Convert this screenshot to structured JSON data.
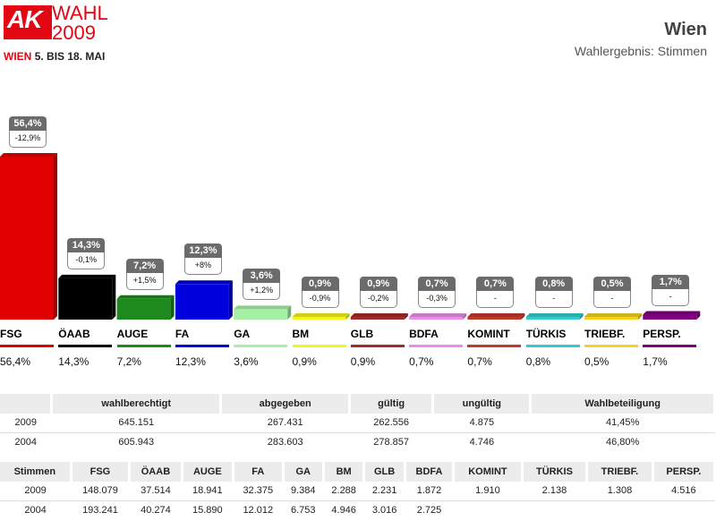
{
  "header": {
    "logo_mark": "AK",
    "logo_word": "WAHL",
    "logo_year": "2009",
    "logo_city": "WIEN",
    "logo_dates": "5. BIS 18. MAI",
    "title": "Wien",
    "subtitle": "Wahlergebnis: Stimmen"
  },
  "chart_data": {
    "type": "bar",
    "categories": [
      "FSG",
      "ÖAAB",
      "AUGE",
      "FA",
      "GA",
      "BM",
      "GLB",
      "BDFA",
      "KOMINT",
      "TÜRKIS",
      "TRIEBF.",
      "PERSP."
    ],
    "values": [
      56.4,
      14.3,
      7.2,
      12.3,
      3.6,
      0.9,
      0.9,
      0.7,
      0.7,
      0.8,
      0.5,
      1.7
    ],
    "value_labels": [
      "56,4%",
      "14,3%",
      "7,2%",
      "12,3%",
      "3,6%",
      "0,9%",
      "0,9%",
      "0,7%",
      "0,7%",
      "0,8%",
      "0,5%",
      "1,7%"
    ],
    "changes": [
      "-12,9%",
      "-0,1%",
      "+1,5%",
      "+8%",
      "+1,2%",
      "-0,9%",
      "-0,2%",
      "-0,3%",
      "-",
      "-",
      "-",
      "-"
    ],
    "colors": [
      "#e00000",
      "#000000",
      "#1e8a1e",
      "#0000dd",
      "#a6f0a6",
      "#f5f51e",
      "#a52a2a",
      "#e88ee8",
      "#c0392b",
      "#33cccc",
      "#f5d21e",
      "#800080"
    ],
    "ylim": [
      0,
      56.4
    ]
  },
  "table_turnout": {
    "headers": [
      "",
      "wahlberechtigt",
      "abgegeben",
      "gültig",
      "ungültig",
      "Wahlbeteiligung"
    ],
    "rows": [
      [
        "2009",
        "645.151",
        "267.431",
        "262.556",
        "4.875",
        "41,45%"
      ],
      [
        "2004",
        "605.943",
        "283.603",
        "278.857",
        "4.746",
        "46,80%"
      ]
    ]
  },
  "table_votes": {
    "headers": [
      "Stimmen",
      "FSG",
      "ÖAAB",
      "AUGE",
      "FA",
      "GA",
      "BM",
      "GLB",
      "BDFA",
      "KOMINT",
      "TÜRKIS",
      "TRIEBF.",
      "PERSP."
    ],
    "rows": [
      [
        "2009",
        "148.079",
        "37.514",
        "18.941",
        "32.375",
        "9.384",
        "2.288",
        "2.231",
        "1.872",
        "1.910",
        "2.138",
        "1.308",
        "4.516"
      ],
      [
        "2004",
        "193.241",
        "40.274",
        "15.890",
        "12.012",
        "6.753",
        "4.946",
        "3.016",
        "2.725",
        "",
        "",
        "",
        ""
      ]
    ]
  }
}
